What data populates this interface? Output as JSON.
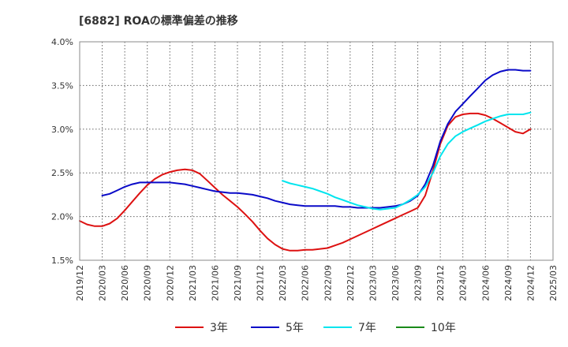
{
  "chart_data": {
    "type": "line",
    "title": "[6882]  ROAの標準偏差の推移",
    "xlabel": "",
    "ylabel": "",
    "ylim": [
      1.5,
      4.0
    ],
    "yticks": [
      "1.5%",
      "2.0%",
      "2.5%",
      "3.0%",
      "3.5%",
      "4.0%"
    ],
    "ytick_values": [
      1.5,
      2.0,
      2.5,
      3.0,
      3.5,
      4.0
    ],
    "x_categories": [
      "2019/12",
      "2020/03",
      "2020/06",
      "2020/09",
      "2020/12",
      "2021/03",
      "2021/06",
      "2021/09",
      "2021/12",
      "2022/03",
      "2022/06",
      "2022/09",
      "2022/12",
      "2023/03",
      "2023/06",
      "2023/09",
      "2023/12",
      "2024/03",
      "2024/06",
      "2024/09",
      "2024/12",
      "2025/03"
    ],
    "grid": true,
    "legend_position": "bottom",
    "series": [
      {
        "name": "3年",
        "color": "#dd1111",
        "points": [
          [
            0,
            1.95
          ],
          [
            0.33,
            1.91
          ],
          [
            0.67,
            1.89
          ],
          [
            1,
            1.89
          ],
          [
            1.33,
            1.92
          ],
          [
            1.67,
            1.98
          ],
          [
            2,
            2.07
          ],
          [
            2.33,
            2.17
          ],
          [
            2.67,
            2.27
          ],
          [
            3,
            2.36
          ],
          [
            3.33,
            2.43
          ],
          [
            3.67,
            2.48
          ],
          [
            4,
            2.51
          ],
          [
            4.33,
            2.53
          ],
          [
            4.67,
            2.54
          ],
          [
            5,
            2.53
          ],
          [
            5.33,
            2.49
          ],
          [
            5.67,
            2.41
          ],
          [
            6,
            2.33
          ],
          [
            6.33,
            2.25
          ],
          [
            6.67,
            2.18
          ],
          [
            7,
            2.11
          ],
          [
            7.33,
            2.03
          ],
          [
            7.67,
            1.94
          ],
          [
            8,
            1.84
          ],
          [
            8.33,
            1.75
          ],
          [
            8.67,
            1.68
          ],
          [
            9,
            1.63
          ],
          [
            9.33,
            1.61
          ],
          [
            9.67,
            1.61
          ],
          [
            10,
            1.62
          ],
          [
            10.33,
            1.62
          ],
          [
            10.67,
            1.63
          ],
          [
            11,
            1.64
          ],
          [
            11.33,
            1.67
          ],
          [
            11.67,
            1.7
          ],
          [
            12,
            1.74
          ],
          [
            12.33,
            1.78
          ],
          [
            12.67,
            1.82
          ],
          [
            13,
            1.86
          ],
          [
            13.33,
            1.9
          ],
          [
            13.67,
            1.94
          ],
          [
            14,
            1.98
          ],
          [
            14.33,
            2.02
          ],
          [
            14.67,
            2.06
          ],
          [
            15,
            2.1
          ],
          [
            15.33,
            2.24
          ],
          [
            15.67,
            2.52
          ],
          [
            16,
            2.83
          ],
          [
            16.33,
            3.04
          ],
          [
            16.67,
            3.14
          ],
          [
            17,
            3.17
          ],
          [
            17.33,
            3.18
          ],
          [
            17.67,
            3.18
          ],
          [
            18,
            3.16
          ],
          [
            18.33,
            3.12
          ],
          [
            18.67,
            3.07
          ],
          [
            19,
            3.02
          ],
          [
            19.33,
            2.97
          ],
          [
            19.67,
            2.95
          ],
          [
            20,
            3.0
          ]
        ]
      },
      {
        "name": "5年",
        "color": "#0a0ac8",
        "points": [
          [
            1,
            2.24
          ],
          [
            1.33,
            2.26
          ],
          [
            1.67,
            2.3
          ],
          [
            2,
            2.34
          ],
          [
            2.33,
            2.37
          ],
          [
            2.67,
            2.39
          ],
          [
            3,
            2.39
          ],
          [
            3.33,
            2.39
          ],
          [
            3.67,
            2.39
          ],
          [
            4,
            2.39
          ],
          [
            4.33,
            2.38
          ],
          [
            4.67,
            2.37
          ],
          [
            5,
            2.35
          ],
          [
            5.33,
            2.33
          ],
          [
            5.67,
            2.31
          ],
          [
            6,
            2.29
          ],
          [
            6.33,
            2.28
          ],
          [
            6.67,
            2.27
          ],
          [
            7,
            2.27
          ],
          [
            7.33,
            2.26
          ],
          [
            7.67,
            2.25
          ],
          [
            8,
            2.23
          ],
          [
            8.33,
            2.21
          ],
          [
            8.67,
            2.18
          ],
          [
            9,
            2.16
          ],
          [
            9.33,
            2.14
          ],
          [
            9.67,
            2.13
          ],
          [
            10,
            2.12
          ],
          [
            10.33,
            2.12
          ],
          [
            10.67,
            2.12
          ],
          [
            11,
            2.12
          ],
          [
            11.33,
            2.12
          ],
          [
            11.67,
            2.11
          ],
          [
            12,
            2.11
          ],
          [
            12.33,
            2.1
          ],
          [
            12.67,
            2.1
          ],
          [
            13,
            2.1
          ],
          [
            13.33,
            2.1
          ],
          [
            13.67,
            2.11
          ],
          [
            14,
            2.12
          ],
          [
            14.33,
            2.14
          ],
          [
            14.67,
            2.18
          ],
          [
            15,
            2.24
          ],
          [
            15.33,
            2.37
          ],
          [
            15.67,
            2.58
          ],
          [
            16,
            2.86
          ],
          [
            16.33,
            3.06
          ],
          [
            16.67,
            3.2
          ],
          [
            17,
            3.29
          ],
          [
            17.33,
            3.38
          ],
          [
            17.67,
            3.47
          ],
          [
            18,
            3.56
          ],
          [
            18.33,
            3.62
          ],
          [
            18.67,
            3.66
          ],
          [
            19,
            3.68
          ],
          [
            19.33,
            3.68
          ],
          [
            19.67,
            3.67
          ],
          [
            20,
            3.67
          ]
        ]
      },
      {
        "name": "7年",
        "color": "#00e5ee",
        "points": [
          [
            9,
            2.41
          ],
          [
            9.33,
            2.38
          ],
          [
            9.67,
            2.36
          ],
          [
            10,
            2.34
          ],
          [
            10.33,
            2.32
          ],
          [
            10.67,
            2.29
          ],
          [
            11,
            2.26
          ],
          [
            11.33,
            2.22
          ],
          [
            11.67,
            2.19
          ],
          [
            12,
            2.16
          ],
          [
            12.33,
            2.13
          ],
          [
            12.67,
            2.11
          ],
          [
            13,
            2.09
          ],
          [
            13.33,
            2.08
          ],
          [
            13.67,
            2.09
          ],
          [
            14,
            2.1
          ],
          [
            14.33,
            2.14
          ],
          [
            14.67,
            2.19
          ],
          [
            15,
            2.25
          ],
          [
            15.33,
            2.34
          ],
          [
            15.67,
            2.5
          ],
          [
            16,
            2.69
          ],
          [
            16.33,
            2.83
          ],
          [
            16.67,
            2.92
          ],
          [
            17,
            2.97
          ],
          [
            17.33,
            3.01
          ],
          [
            17.67,
            3.05
          ],
          [
            18,
            3.09
          ],
          [
            18.33,
            3.12
          ],
          [
            18.67,
            3.15
          ],
          [
            19,
            3.17
          ],
          [
            19.33,
            3.17
          ],
          [
            19.67,
            3.17
          ],
          [
            20,
            3.19
          ]
        ]
      },
      {
        "name": "10年",
        "color": "#1a8a1a",
        "points": []
      }
    ]
  }
}
